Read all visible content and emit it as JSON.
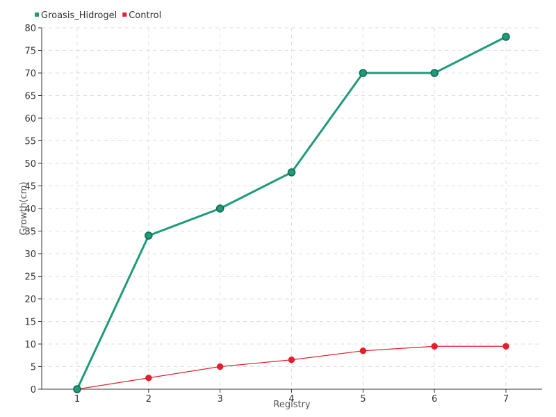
{
  "chart_data": {
    "type": "line",
    "x": [
      1,
      2,
      3,
      4,
      5,
      6,
      7
    ],
    "xlabel": "Registry",
    "ylabel": "Growth(cm)",
    "ylim": [
      0,
      80
    ],
    "yticks": [
      0,
      5,
      10,
      15,
      20,
      25,
      30,
      35,
      40,
      45,
      50,
      55,
      60,
      65,
      70,
      75,
      80
    ],
    "grid": true,
    "legend_position": "top-left",
    "series": [
      {
        "name": "Groasis_Hidrogel",
        "color": "#1f9a7a",
        "values": [
          0,
          34,
          40,
          48,
          70,
          70,
          78
        ]
      },
      {
        "name": "Control",
        "color": "#e0202e",
        "values": [
          0,
          2.5,
          5,
          6.5,
          8.5,
          9.5,
          9.5
        ]
      }
    ]
  }
}
